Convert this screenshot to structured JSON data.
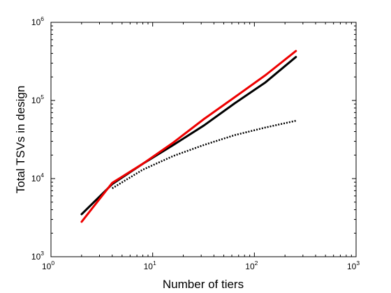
{
  "chart_data": {
    "type": "line",
    "title": "",
    "xlabel": "Number of tiers",
    "ylabel": "Total TSVs in design",
    "xscale": "log",
    "yscale": "log",
    "xlim": [
      1,
      1000
    ],
    "ylim": [
      1000,
      1000000
    ],
    "grid": false,
    "legend": "none",
    "x_ticks": [
      {
        "base": "10",
        "exp": "0"
      },
      {
        "base": "10",
        "exp": "1"
      },
      {
        "base": "10",
        "exp": "2"
      },
      {
        "base": "10",
        "exp": "3"
      }
    ],
    "y_ticks": [
      {
        "base": "10",
        "exp": "3"
      },
      {
        "base": "10",
        "exp": "4"
      },
      {
        "base": "10",
        "exp": "5"
      },
      {
        "base": "10",
        "exp": "6"
      }
    ],
    "series": [
      {
        "color": "#000000",
        "style": "solid",
        "x": [
          2,
          4,
          8,
          16,
          32,
          64,
          128,
          256
        ],
        "y": [
          3500,
          8500,
          15500,
          27000,
          48000,
          92000,
          170000,
          360000
        ]
      },
      {
        "color": "#000000",
        "style": "dotted",
        "x": [
          4,
          8,
          16,
          32,
          64,
          128,
          256
        ],
        "y": [
          7500,
          13000,
          19500,
          27000,
          36000,
          45000,
          55000
        ]
      },
      {
        "color": "#ee0000",
        "style": "solid",
        "x": [
          2,
          4,
          8,
          16,
          32,
          64,
          128,
          256
        ],
        "y": [
          2800,
          8800,
          15500,
          29000,
          58000,
          110000,
          210000,
          430000
        ]
      }
    ]
  }
}
